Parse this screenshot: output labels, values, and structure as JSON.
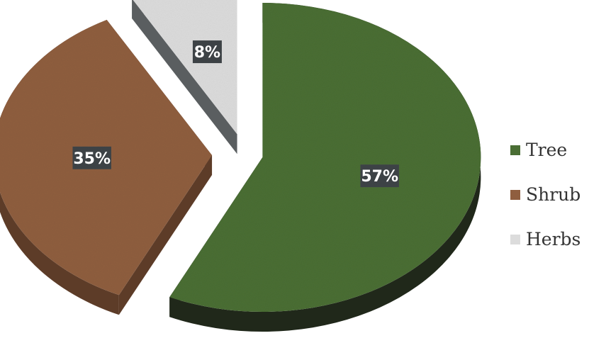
{
  "chart_data": {
    "type": "pie",
    "style": "3d-exploded",
    "categories": [
      "Tree",
      "Shrub",
      "Herbs"
    ],
    "values": [
      57,
      35,
      8
    ],
    "labels": [
      "57%",
      "35%",
      "8%"
    ],
    "colors": [
      "#4a6e34",
      "#8f5e3f",
      "#dcdcdc"
    ],
    "side_colors": [
      "#20281a",
      "#5d3c28",
      "#5a5e60"
    ],
    "label_box_color": "#3e4447",
    "legend_placement": "right",
    "title": ""
  }
}
